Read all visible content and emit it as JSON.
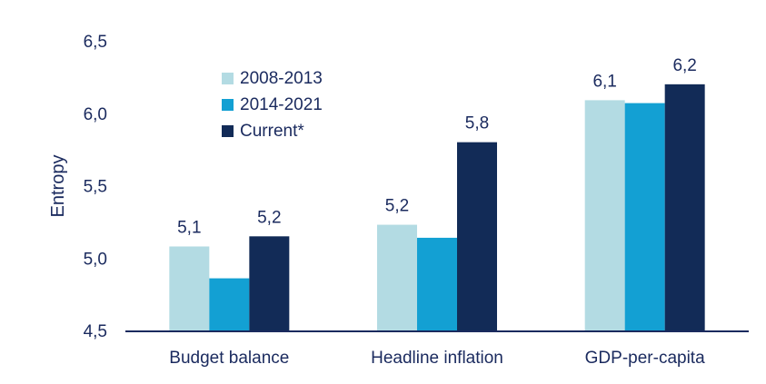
{
  "chart_data": {
    "type": "bar",
    "title": "",
    "xlabel": "",
    "ylabel": "Entropy",
    "ylim": [
      4.5,
      6.5
    ],
    "yticks": [
      "6,5",
      "6,0",
      "5,5",
      "5,0",
      "4,5"
    ],
    "ytick_values": [
      6.5,
      6.0,
      5.5,
      5.0,
      4.5
    ],
    "grid": false,
    "legend_position": "top-left",
    "categories": [
      "Budget balance",
      "Headline inflation",
      "GDP-per-capita"
    ],
    "series": [
      {
        "name": "2008-2013",
        "color": "#b3dbe3",
        "values": [
          5.08,
          5.23,
          6.09
        ]
      },
      {
        "name": "2014-2021",
        "color": "#13a0d3",
        "values": [
          4.86,
          5.14,
          6.07
        ]
      },
      {
        "name": "Current*",
        "color": "#122b57",
        "values": [
          5.15,
          5.8,
          6.2
        ]
      }
    ],
    "data_labels": [
      {
        "category": 0,
        "series": 0,
        "text": "5,1"
      },
      {
        "category": 0,
        "series": 2,
        "text": "5,2"
      },
      {
        "category": 1,
        "series": 0,
        "text": "5,2"
      },
      {
        "category": 1,
        "series": 2,
        "text": "5,8"
      },
      {
        "category": 2,
        "series": 0,
        "text": "6,1"
      },
      {
        "category": 2,
        "series": 2,
        "text": "6,2"
      }
    ],
    "axis_color": "#1a2a5e"
  }
}
